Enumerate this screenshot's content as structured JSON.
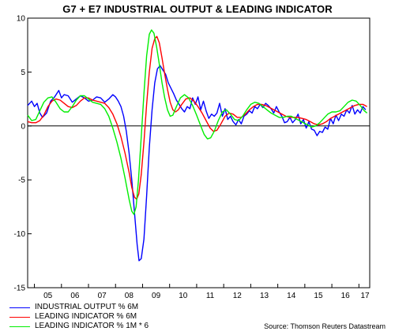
{
  "chart_data": {
    "type": "line",
    "title": "G7 + E7 INDUSTRIAL OUTPUT & LEADING INDICATOR",
    "source": "Source: Thomson Reuters Datastream",
    "x_ticks": [
      "05",
      "06",
      "07",
      "08",
      "09",
      "10",
      "11",
      "12",
      "13",
      "14",
      "15",
      "16",
      "17"
    ],
    "x_range": [
      2004.75,
      2017.4
    ],
    "ylim": [
      -15,
      10
    ],
    "y_ticks": [
      10,
      5,
      0,
      -5,
      -10,
      -15
    ],
    "grid": false,
    "zero_line": true,
    "legend_position": "bottom-left",
    "series": [
      {
        "name": "INDUSTRIAL OUTPUT % 6M",
        "color": "#0000ff",
        "points": [
          [
            2004.75,
            1.9
          ],
          [
            2004.9,
            2.3
          ],
          [
            2005.0,
            1.8
          ],
          [
            2005.1,
            2.1
          ],
          [
            2005.2,
            1.2
          ],
          [
            2005.3,
            0.8
          ],
          [
            2005.45,
            1.2
          ],
          [
            2005.6,
            2.3
          ],
          [
            2005.75,
            2.7
          ],
          [
            2005.9,
            3.3
          ],
          [
            2006.0,
            2.6
          ],
          [
            2006.1,
            2.9
          ],
          [
            2006.25,
            2.8
          ],
          [
            2006.4,
            2.2
          ],
          [
            2006.55,
            2.5
          ],
          [
            2006.7,
            2.8
          ],
          [
            2006.85,
            2.6
          ],
          [
            2007.0,
            2.3
          ],
          [
            2007.15,
            2.4
          ],
          [
            2007.3,
            2.7
          ],
          [
            2007.45,
            2.6
          ],
          [
            2007.6,
            2.2
          ],
          [
            2007.75,
            2.5
          ],
          [
            2007.9,
            2.9
          ],
          [
            2008.0,
            2.7
          ],
          [
            2008.1,
            2.3
          ],
          [
            2008.2,
            1.8
          ],
          [
            2008.3,
            0.9
          ],
          [
            2008.4,
            -0.5
          ],
          [
            2008.5,
            -2.5
          ],
          [
            2008.6,
            -5.0
          ],
          [
            2008.7,
            -8.0
          ],
          [
            2008.8,
            -11.0
          ],
          [
            2008.87,
            -12.5
          ],
          [
            2008.95,
            -12.3
          ],
          [
            2009.05,
            -10.5
          ],
          [
            2009.15,
            -6.5
          ],
          [
            2009.25,
            -2.0
          ],
          [
            2009.35,
            1.5
          ],
          [
            2009.45,
            4.0
          ],
          [
            2009.55,
            5.3
          ],
          [
            2009.65,
            5.6
          ],
          [
            2009.75,
            5.2
          ],
          [
            2009.85,
            4.8
          ],
          [
            2009.95,
            4.0
          ],
          [
            2010.05,
            3.5
          ],
          [
            2010.15,
            3.0
          ],
          [
            2010.25,
            2.4
          ],
          [
            2010.35,
            2.0
          ],
          [
            2010.45,
            1.6
          ],
          [
            2010.55,
            1.3
          ],
          [
            2010.65,
            1.8
          ],
          [
            2010.75,
            1.6
          ],
          [
            2010.85,
            2.6
          ],
          [
            2010.95,
            2.0
          ],
          [
            2011.05,
            2.7
          ],
          [
            2011.15,
            1.5
          ],
          [
            2011.25,
            2.3
          ],
          [
            2011.35,
            1.4
          ],
          [
            2011.45,
            0.7
          ],
          [
            2011.55,
            1.1
          ],
          [
            2011.65,
            0.9
          ],
          [
            2011.75,
            1.2
          ],
          [
            2011.85,
            2.1
          ],
          [
            2011.95,
            0.9
          ],
          [
            2012.05,
            1.6
          ],
          [
            2012.15,
            0.6
          ],
          [
            2012.25,
            0.9
          ],
          [
            2012.35,
            0.4
          ],
          [
            2012.45,
            0.1
          ],
          [
            2012.55,
            0.6
          ],
          [
            2012.65,
            0.2
          ],
          [
            2012.75,
            0.9
          ],
          [
            2012.85,
            1.1
          ],
          [
            2012.95,
            1.4
          ],
          [
            2013.05,
            1.2
          ],
          [
            2013.15,
            1.8
          ],
          [
            2013.25,
            1.6
          ],
          [
            2013.35,
            2.0
          ],
          [
            2013.45,
            1.7
          ],
          [
            2013.55,
            2.1
          ],
          [
            2013.65,
            1.9
          ],
          [
            2013.75,
            1.6
          ],
          [
            2013.85,
            1.2
          ],
          [
            2013.95,
            1.8
          ],
          [
            2014.05,
            1.3
          ],
          [
            2014.15,
            0.9
          ],
          [
            2014.25,
            0.3
          ],
          [
            2014.35,
            0.4
          ],
          [
            2014.45,
            0.8
          ],
          [
            2014.55,
            0.3
          ],
          [
            2014.65,
            0.6
          ],
          [
            2014.75,
            1.1
          ],
          [
            2014.85,
            0.2
          ],
          [
            2014.95,
            0.6
          ],
          [
            2015.05,
            -0.2
          ],
          [
            2015.15,
            0.4
          ],
          [
            2015.25,
            -0.3
          ],
          [
            2015.35,
            -0.4
          ],
          [
            2015.45,
            -0.9
          ],
          [
            2015.55,
            -0.5
          ],
          [
            2015.65,
            -0.6
          ],
          [
            2015.75,
            -0.1
          ],
          [
            2015.85,
            -0.3
          ],
          [
            2015.95,
            0.7
          ],
          [
            2016.05,
            0.2
          ],
          [
            2016.15,
            1.0
          ],
          [
            2016.25,
            0.5
          ],
          [
            2016.35,
            1.1
          ],
          [
            2016.45,
            0.9
          ],
          [
            2016.55,
            1.5
          ],
          [
            2016.65,
            1.2
          ],
          [
            2016.75,
            1.9
          ],
          [
            2016.85,
            1.1
          ],
          [
            2016.95,
            1.5
          ],
          [
            2017.05,
            1.2
          ],
          [
            2017.15,
            1.8
          ],
          [
            2017.25,
            1.5
          ]
        ]
      },
      {
        "name": "LEADING INDICATOR % 6M",
        "color": "#ff0000",
        "points": [
          [
            2004.75,
            0.4
          ],
          [
            2004.9,
            0.3
          ],
          [
            2005.05,
            0.3
          ],
          [
            2005.2,
            0.5
          ],
          [
            2005.35,
            1.0
          ],
          [
            2005.5,
            1.8
          ],
          [
            2005.65,
            2.3
          ],
          [
            2005.8,
            2.5
          ],
          [
            2005.95,
            2.4
          ],
          [
            2006.1,
            2.1
          ],
          [
            2006.25,
            1.8
          ],
          [
            2006.4,
            1.7
          ],
          [
            2006.55,
            1.9
          ],
          [
            2006.7,
            2.3
          ],
          [
            2006.85,
            2.6
          ],
          [
            2007.0,
            2.6
          ],
          [
            2007.15,
            2.4
          ],
          [
            2007.3,
            2.3
          ],
          [
            2007.45,
            2.2
          ],
          [
            2007.6,
            2.1
          ],
          [
            2007.75,
            1.7
          ],
          [
            2007.9,
            1.1
          ],
          [
            2008.05,
            0.2
          ],
          [
            2008.2,
            -1.0
          ],
          [
            2008.35,
            -2.5
          ],
          [
            2008.5,
            -4.3
          ],
          [
            2008.6,
            -5.7
          ],
          [
            2008.7,
            -6.6
          ],
          [
            2008.78,
            -6.8
          ],
          [
            2008.86,
            -6.3
          ],
          [
            2008.95,
            -4.5
          ],
          [
            2009.05,
            -1.5
          ],
          [
            2009.15,
            2.0
          ],
          [
            2009.25,
            5.0
          ],
          [
            2009.35,
            7.2
          ],
          [
            2009.45,
            8.1
          ],
          [
            2009.53,
            8.3
          ],
          [
            2009.62,
            7.7
          ],
          [
            2009.72,
            6.3
          ],
          [
            2009.82,
            4.8
          ],
          [
            2009.92,
            3.4
          ],
          [
            2010.02,
            2.2
          ],
          [
            2010.12,
            1.5
          ],
          [
            2010.22,
            1.3
          ],
          [
            2010.32,
            1.5
          ],
          [
            2010.45,
            2.0
          ],
          [
            2010.6,
            2.5
          ],
          [
            2010.75,
            2.6
          ],
          [
            2010.9,
            2.3
          ],
          [
            2011.05,
            1.8
          ],
          [
            2011.2,
            1.2
          ],
          [
            2011.35,
            0.5
          ],
          [
            2011.5,
            -0.2
          ],
          [
            2011.62,
            -0.5
          ],
          [
            2011.75,
            -0.4
          ],
          [
            2011.9,
            0.2
          ],
          [
            2012.05,
            0.9
          ],
          [
            2012.2,
            1.2
          ],
          [
            2012.35,
            1.1
          ],
          [
            2012.5,
            0.8
          ],
          [
            2012.65,
            0.8
          ],
          [
            2012.8,
            1.1
          ],
          [
            2012.95,
            1.5
          ],
          [
            2013.1,
            1.8
          ],
          [
            2013.25,
            2.0
          ],
          [
            2013.4,
            2.0
          ],
          [
            2013.55,
            1.9
          ],
          [
            2013.7,
            1.7
          ],
          [
            2013.85,
            1.5
          ],
          [
            2014.0,
            1.3
          ],
          [
            2014.15,
            1.1
          ],
          [
            2014.3,
            0.9
          ],
          [
            2014.45,
            0.8
          ],
          [
            2014.6,
            0.8
          ],
          [
            2014.75,
            0.8
          ],
          [
            2014.9,
            0.7
          ],
          [
            2015.05,
            0.6
          ],
          [
            2015.2,
            0.4
          ],
          [
            2015.35,
            0.2
          ],
          [
            2015.5,
            0.1
          ],
          [
            2015.65,
            0.2
          ],
          [
            2015.8,
            0.4
          ],
          [
            2015.95,
            0.7
          ],
          [
            2016.1,
            0.9
          ],
          [
            2016.25,
            1.1
          ],
          [
            2016.4,
            1.3
          ],
          [
            2016.55,
            1.5
          ],
          [
            2016.7,
            1.7
          ],
          [
            2016.85,
            1.9
          ],
          [
            2017.0,
            2.0
          ],
          [
            2017.15,
            2.0
          ],
          [
            2017.3,
            1.8
          ]
        ]
      },
      {
        "name": "LEADING INDICATOR % 1M * 6",
        "color": "#00ee00",
        "points": [
          [
            2004.75,
            1.0
          ],
          [
            2004.9,
            0.5
          ],
          [
            2005.05,
            0.6
          ],
          [
            2005.2,
            1.4
          ],
          [
            2005.35,
            2.2
          ],
          [
            2005.5,
            2.6
          ],
          [
            2005.65,
            2.7
          ],
          [
            2005.8,
            2.2
          ],
          [
            2005.95,
            1.6
          ],
          [
            2006.1,
            1.3
          ],
          [
            2006.25,
            1.3
          ],
          [
            2006.4,
            1.8
          ],
          [
            2006.55,
            2.4
          ],
          [
            2006.7,
            2.8
          ],
          [
            2006.85,
            2.8
          ],
          [
            2007.0,
            2.5
          ],
          [
            2007.15,
            2.2
          ],
          [
            2007.3,
            2.1
          ],
          [
            2007.45,
            2.0
          ],
          [
            2007.6,
            1.6
          ],
          [
            2007.75,
            0.9
          ],
          [
            2007.9,
            -0.2
          ],
          [
            2008.05,
            -1.5
          ],
          [
            2008.2,
            -3.0
          ],
          [
            2008.35,
            -4.8
          ],
          [
            2008.5,
            -6.8
          ],
          [
            2008.6,
            -7.9
          ],
          [
            2008.68,
            -8.2
          ],
          [
            2008.76,
            -7.5
          ],
          [
            2008.85,
            -5.0
          ],
          [
            2008.95,
            -1.0
          ],
          [
            2009.05,
            3.0
          ],
          [
            2009.15,
            6.5
          ],
          [
            2009.25,
            8.5
          ],
          [
            2009.33,
            8.9
          ],
          [
            2009.42,
            8.6
          ],
          [
            2009.52,
            7.3
          ],
          [
            2009.62,
            5.7
          ],
          [
            2009.72,
            4.0
          ],
          [
            2009.82,
            2.6
          ],
          [
            2009.92,
            1.5
          ],
          [
            2010.02,
            0.9
          ],
          [
            2010.12,
            1.0
          ],
          [
            2010.25,
            1.8
          ],
          [
            2010.4,
            2.6
          ],
          [
            2010.55,
            2.9
          ],
          [
            2010.7,
            2.6
          ],
          [
            2010.85,
            1.9
          ],
          [
            2011.0,
            1.0
          ],
          [
            2011.15,
            0.0
          ],
          [
            2011.28,
            -0.8
          ],
          [
            2011.4,
            -1.2
          ],
          [
            2011.52,
            -1.1
          ],
          [
            2011.65,
            -0.5
          ],
          [
            2011.8,
            0.5
          ],
          [
            2011.95,
            1.3
          ],
          [
            2012.1,
            1.5
          ],
          [
            2012.25,
            1.1
          ],
          [
            2012.4,
            0.6
          ],
          [
            2012.55,
            0.5
          ],
          [
            2012.7,
            0.9
          ],
          [
            2012.85,
            1.5
          ],
          [
            2013.0,
            2.0
          ],
          [
            2013.15,
            2.2
          ],
          [
            2013.3,
            2.1
          ],
          [
            2013.45,
            1.8
          ],
          [
            2013.6,
            1.5
          ],
          [
            2013.75,
            1.2
          ],
          [
            2013.9,
            1.0
          ],
          [
            2014.05,
            0.8
          ],
          [
            2014.2,
            0.8
          ],
          [
            2014.35,
            0.9
          ],
          [
            2014.5,
            0.9
          ],
          [
            2014.65,
            0.7
          ],
          [
            2014.8,
            0.5
          ],
          [
            2014.95,
            0.3
          ],
          [
            2015.1,
            0.1
          ],
          [
            2015.25,
            -0.1
          ],
          [
            2015.4,
            0.0
          ],
          [
            2015.55,
            0.3
          ],
          [
            2015.7,
            0.7
          ],
          [
            2015.85,
            1.1
          ],
          [
            2016.0,
            1.3
          ],
          [
            2016.15,
            1.3
          ],
          [
            2016.3,
            1.4
          ],
          [
            2016.45,
            1.8
          ],
          [
            2016.6,
            2.2
          ],
          [
            2016.75,
            2.4
          ],
          [
            2016.9,
            2.3
          ],
          [
            2017.05,
            1.9
          ],
          [
            2017.2,
            1.4
          ],
          [
            2017.3,
            1.2
          ]
        ]
      }
    ]
  }
}
